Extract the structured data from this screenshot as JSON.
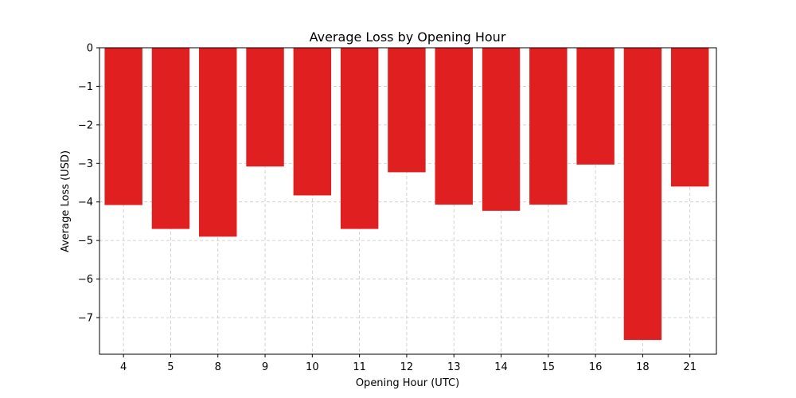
{
  "chart_data": {
    "type": "bar",
    "title": "Average Loss by Opening Hour",
    "xlabel": "Opening Hour (UTC)",
    "ylabel": "Average Loss (USD)",
    "categories": [
      "4",
      "5",
      "8",
      "9",
      "10",
      "11",
      "12",
      "13",
      "14",
      "15",
      "16",
      "18",
      "21"
    ],
    "values": [
      -4.08,
      -4.7,
      -4.9,
      -3.08,
      -3.83,
      -4.7,
      -3.23,
      -4.07,
      -4.23,
      -4.07,
      -3.03,
      -7.58,
      -3.6
    ],
    "yticks": [
      0,
      -1,
      -2,
      -3,
      -4,
      -5,
      -6,
      -7
    ],
    "ytick_labels": [
      "0",
      "−1",
      "−2",
      "−3",
      "−4",
      "−5",
      "−6",
      "−7"
    ],
    "ylim": [
      -7.95,
      0
    ],
    "grid": true,
    "bar_color": "#e02020"
  }
}
